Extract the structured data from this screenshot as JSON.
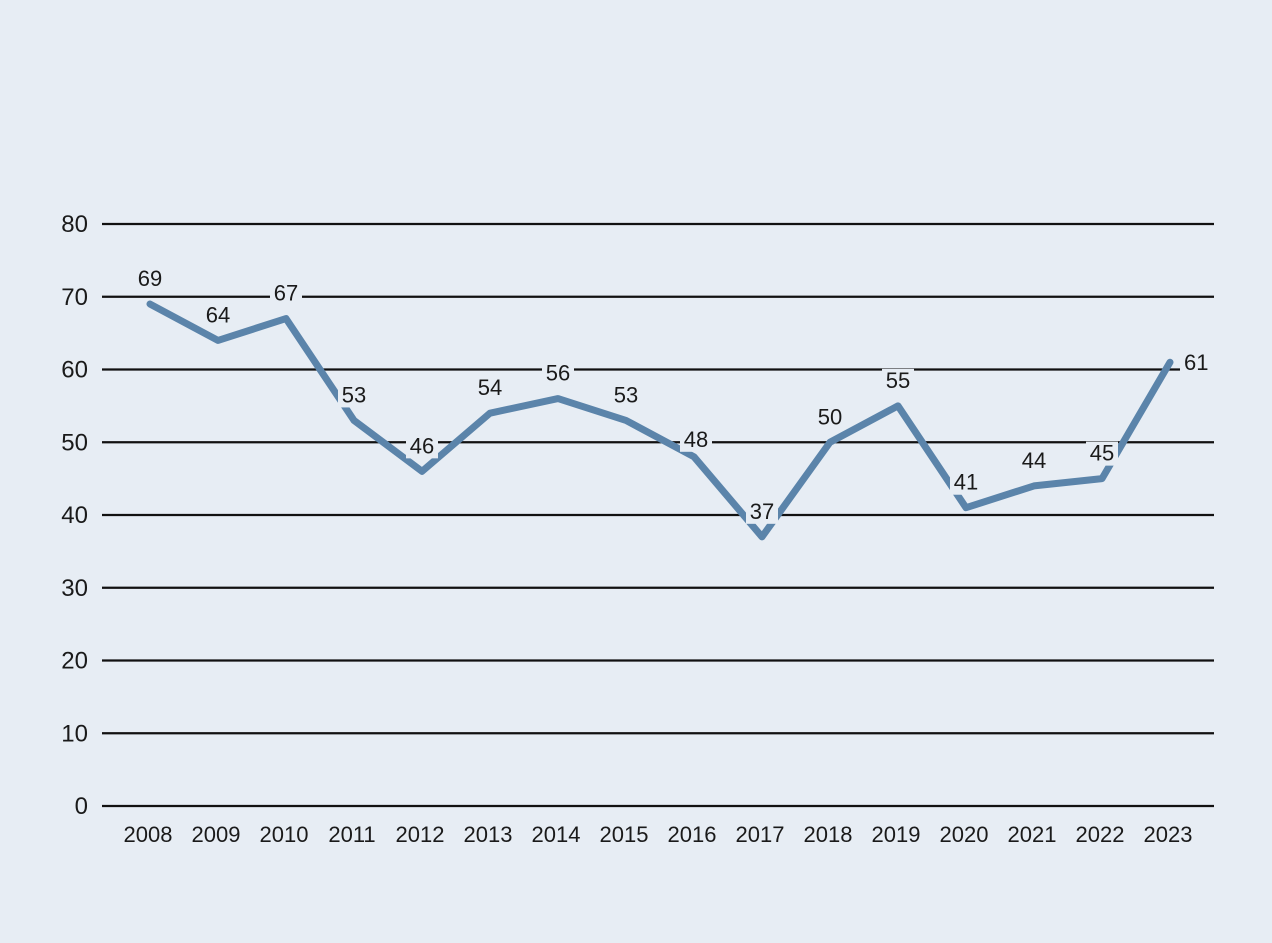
{
  "chart_data": {
    "type": "line",
    "title": "",
    "xlabel": "",
    "ylabel": "",
    "x": [
      "2008",
      "2009",
      "2010",
      "2011",
      "2012",
      "2013",
      "2014",
      "2015",
      "2016",
      "2017",
      "2018",
      "2019",
      "2020",
      "2021",
      "2022",
      "2023"
    ],
    "series": [
      {
        "name": "Value",
        "values": [
          69,
          64,
          67,
          53,
          46,
          54,
          56,
          53,
          48,
          37,
          50,
          55,
          41,
          44,
          45,
          61
        ],
        "color": "#5b84aa"
      }
    ],
    "ylim": [
      0,
      80
    ],
    "yticks": [
      0,
      10,
      20,
      30,
      40,
      50,
      60,
      70,
      80
    ],
    "grid": true,
    "data_labels": true,
    "background": "#e7edf4"
  }
}
